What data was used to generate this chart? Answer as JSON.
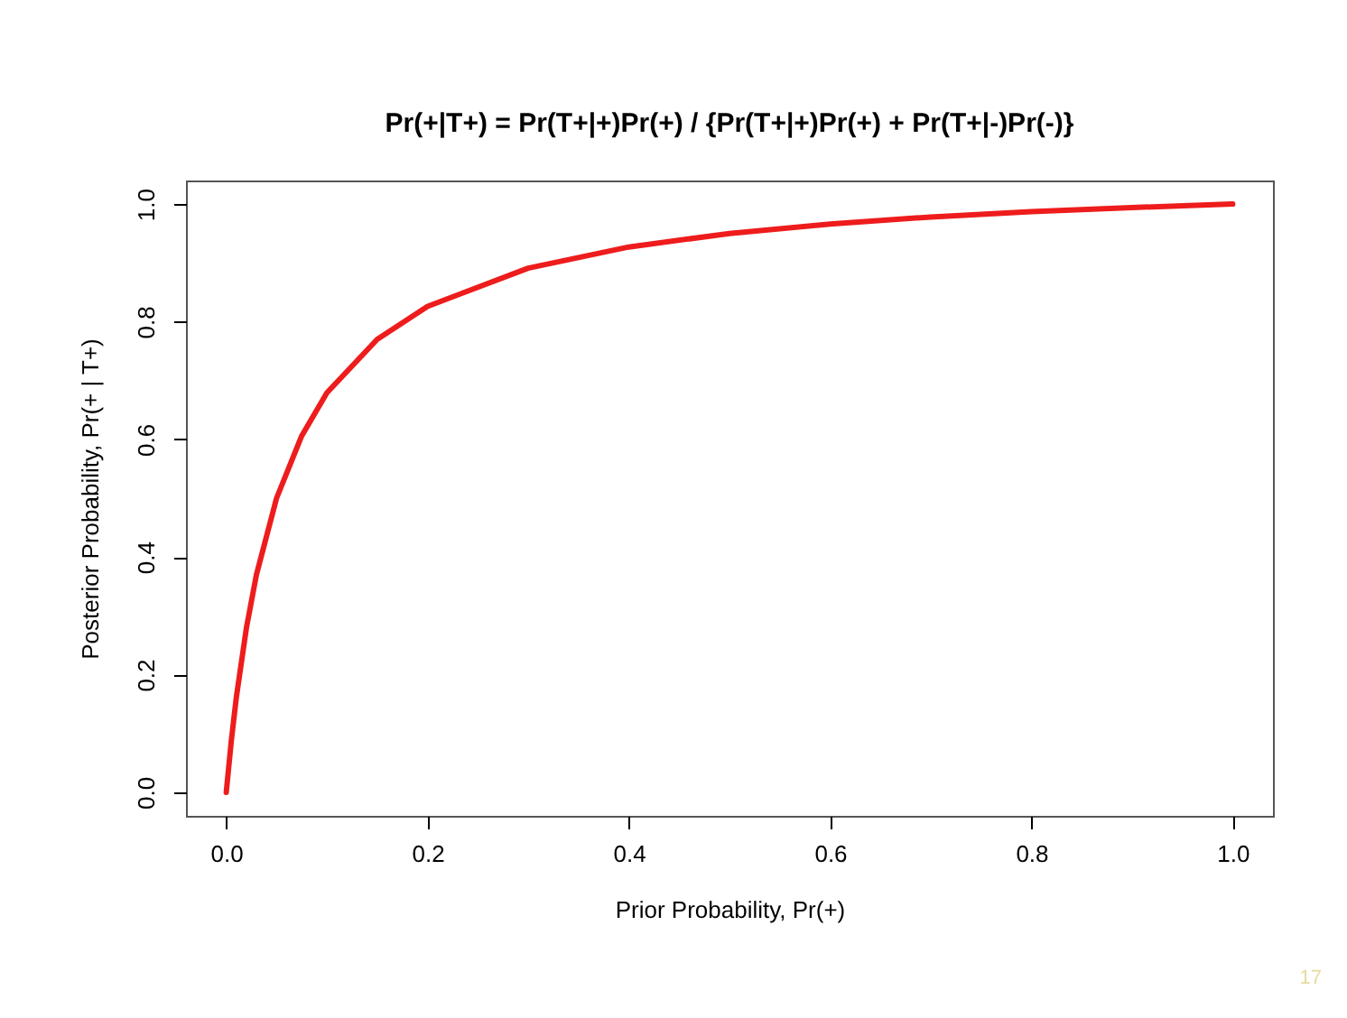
{
  "chart_data": {
    "type": "line",
    "title": "Pr(+|T+) = Pr(T+|+)Pr(+) / {Pr(T+|+)Pr(+) + Pr(T+|-)Pr(-)}",
    "xlabel": "Prior Probability, Pr(+)",
    "ylabel": "Posterior Probability, Pr(+ | T+)",
    "x": [
      0,
      0.005,
      0.01,
      0.02,
      0.03,
      0.05,
      0.075,
      0.1,
      0.15,
      0.2,
      0.3,
      0.4,
      0.5,
      0.6,
      0.7,
      0.8,
      0.9,
      1.0
    ],
    "series": [
      {
        "color": "#ee1c1c",
        "values": [
          0,
          0.087,
          0.161,
          0.279,
          0.37,
          0.5,
          0.606,
          0.679,
          0.77,
          0.826,
          0.891,
          0.927,
          0.95,
          0.966,
          0.978,
          0.987,
          0.994,
          1.0
        ]
      }
    ],
    "xlim": [
      -0.04,
      1.04
    ],
    "ylim": [
      -0.04,
      1.04
    ],
    "xticks": [
      {
        "value": 0,
        "label": "0.0"
      },
      0.2,
      0.4,
      0.6,
      0.8,
      {
        "value": 1,
        "label": "1.0"
      }
    ],
    "yticks": [
      {
        "value": 0,
        "label": "0.0"
      },
      0.2,
      0.4,
      0.6,
      0.8,
      {
        "value": 1,
        "label": "1.0"
      }
    ],
    "grid": false,
    "annotations": [
      "17"
    ]
  }
}
